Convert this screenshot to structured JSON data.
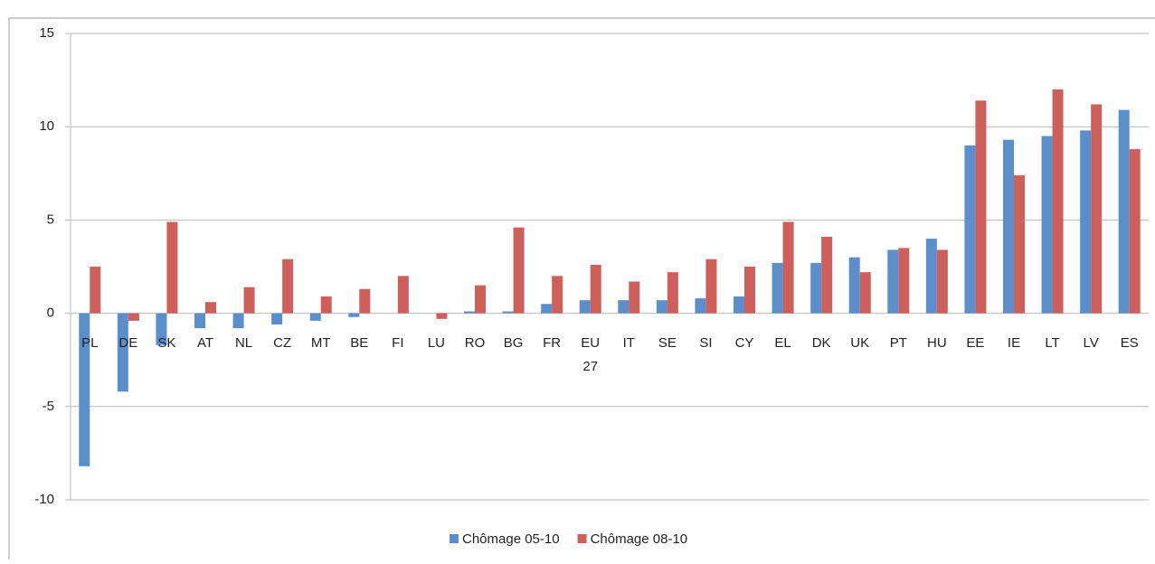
{
  "chart_data": {
    "type": "bar",
    "categories": [
      "PL",
      "DE",
      "SK",
      "AT",
      "NL",
      "CZ",
      "MT",
      "BE",
      "FI",
      "LU",
      "RO",
      "BG",
      "FR",
      "EU 27",
      "IT",
      "SE",
      "SI",
      "CY",
      "EL",
      "DK",
      "UK",
      "PT",
      "HU",
      "EE",
      "IE",
      "LT",
      "LV",
      "ES"
    ],
    "series": [
      {
        "name": "Chômage 05-10",
        "color": "#5b8fcb",
        "values": [
          -8.2,
          -4.2,
          -1.7,
          -0.8,
          -0.8,
          -0.6,
          -0.4,
          -0.2,
          0,
          0,
          0.1,
          0.1,
          0.5,
          0.7,
          0.7,
          0.7,
          0.8,
          0.9,
          2.7,
          2.7,
          3.0,
          3.4,
          4.0,
          9.0,
          9.3,
          9.5,
          9.8,
          10.9
        ]
      },
      {
        "name": "Chômage 08-10",
        "color": "#cf5f5b",
        "values": [
          2.5,
          -0.4,
          4.9,
          0.6,
          1.4,
          2.9,
          0.9,
          1.3,
          2.0,
          -0.3,
          1.5,
          4.6,
          2.0,
          2.6,
          1.7,
          2.2,
          2.9,
          2.5,
          4.9,
          4.1,
          2.2,
          3.5,
          3.4,
          11.4,
          7.4,
          12.0,
          11.2,
          8.8
        ]
      }
    ],
    "ylim": [
      -10,
      15
    ],
    "yticks": [
      -10,
      -5,
      0,
      5,
      10,
      15
    ],
    "grid": true,
    "legend": "bottom"
  }
}
